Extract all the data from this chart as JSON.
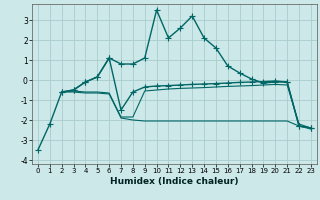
{
  "xlabel": "Humidex (Indice chaleur)",
  "bg_color": "#cce8e8",
  "grid_color": "#aacccc",
  "line_color": "#006666",
  "xlim": [
    -0.5,
    23.5
  ],
  "ylim": [
    -4.2,
    3.8
  ],
  "yticks": [
    -4,
    -3,
    -2,
    -1,
    0,
    1,
    2,
    3
  ],
  "xticks": [
    0,
    1,
    2,
    3,
    4,
    5,
    6,
    7,
    8,
    9,
    10,
    11,
    12,
    13,
    14,
    15,
    16,
    17,
    18,
    19,
    20,
    21,
    22,
    23
  ],
  "series": [
    {
      "x": [
        0,
        1,
        2,
        3,
        4,
        5,
        6,
        7,
        8,
        9,
        10,
        11,
        12,
        13,
        14,
        15,
        16,
        17,
        18,
        19,
        20,
        21,
        22,
        23
      ],
      "y": [
        -3.5,
        -2.2,
        -0.6,
        -0.5,
        -0.1,
        0.15,
        1.1,
        0.8,
        0.8,
        1.1,
        3.5,
        2.1,
        2.6,
        3.2,
        2.1,
        1.6,
        0.7,
        0.35,
        0.05,
        -0.15,
        -0.1,
        -0.1,
        -2.3,
        -2.4
      ],
      "marker": "+",
      "linestyle": "-",
      "linewidth": 1.0,
      "markersize": 4
    },
    {
      "x": [
        2,
        3,
        4,
        5,
        6,
        7,
        8,
        9,
        10,
        11,
        12,
        13,
        14,
        15,
        16,
        17,
        18,
        19,
        20,
        21,
        22,
        23
      ],
      "y": [
        -0.6,
        -0.5,
        -0.1,
        0.15,
        1.1,
        -1.5,
        -0.6,
        -0.35,
        -0.3,
        -0.28,
        -0.25,
        -0.22,
        -0.2,
        -0.18,
        -0.15,
        -0.12,
        -0.1,
        -0.08,
        -0.05,
        -0.1,
        -2.3,
        -2.4
      ],
      "marker": "+",
      "linestyle": "-",
      "linewidth": 1.0,
      "markersize": 4
    },
    {
      "x": [
        2,
        3,
        4,
        5,
        6,
        7,
        8,
        9,
        10,
        11,
        12,
        13,
        14,
        15,
        16,
        17,
        18,
        19,
        20,
        21,
        22,
        23
      ],
      "y": [
        -0.6,
        -0.55,
        -0.6,
        -0.6,
        -0.65,
        -1.85,
        -1.85,
        -0.55,
        -0.5,
        -0.45,
        -0.42,
        -0.4,
        -0.38,
        -0.35,
        -0.32,
        -0.3,
        -0.28,
        -0.25,
        -0.22,
        -0.25,
        -2.2,
        -2.4
      ],
      "marker": null,
      "linestyle": "-",
      "linewidth": 0.8,
      "markersize": 0
    },
    {
      "x": [
        2,
        3,
        4,
        5,
        6,
        7,
        8,
        9,
        10,
        11,
        12,
        13,
        14,
        15,
        16,
        17,
        18,
        19,
        20,
        21,
        22,
        23
      ],
      "y": [
        -0.6,
        -0.6,
        -0.65,
        -0.65,
        -0.7,
        -1.9,
        -2.0,
        -2.05,
        -2.05,
        -2.05,
        -2.05,
        -2.05,
        -2.05,
        -2.05,
        -2.05,
        -2.05,
        -2.05,
        -2.05,
        -2.05,
        -2.05,
        -2.3,
        -2.45
      ],
      "marker": null,
      "linestyle": "-",
      "linewidth": 0.8,
      "markersize": 0
    }
  ]
}
